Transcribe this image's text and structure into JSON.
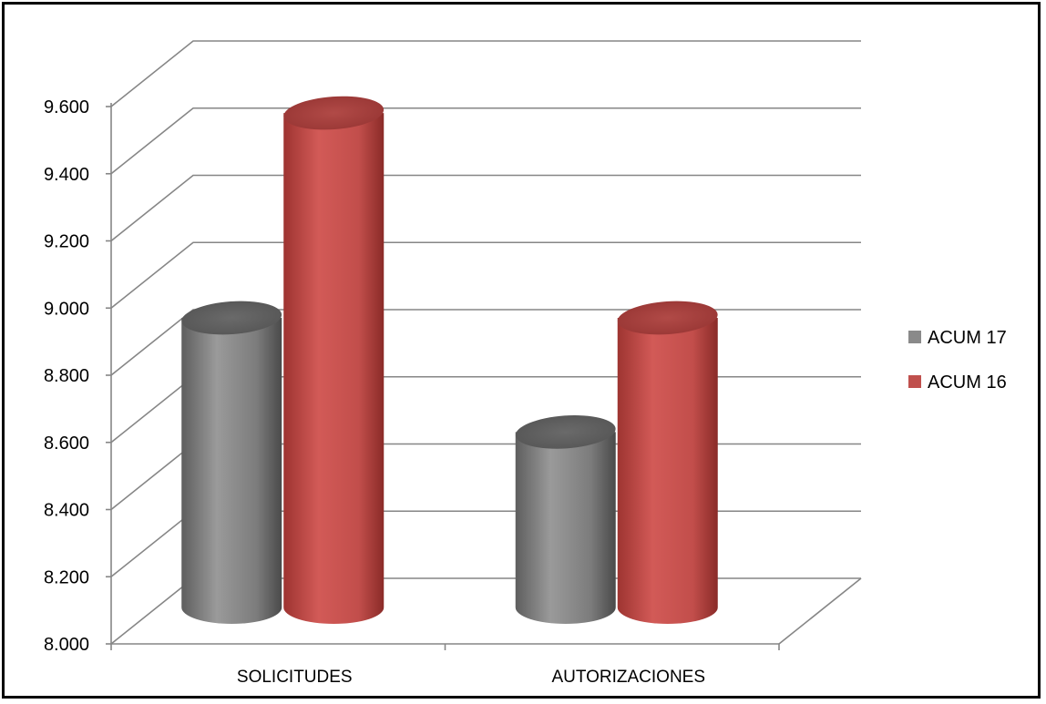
{
  "chart_data": {
    "type": "bar",
    "categories": [
      "SOLICITUDES",
      "AUTORIZACIONES"
    ],
    "series": [
      {
        "name": "ACUM 17",
        "values": [
          8960,
          8620
        ],
        "color": "#8a8a8a"
      },
      {
        "name": "ACUM 16",
        "values": [
          9570,
          8960
        ],
        "color": "#c0504d"
      }
    ],
    "y_ticks": [
      "8.000",
      "8.200",
      "8.400",
      "8.600",
      "8.800",
      "9.000",
      "9.200",
      "9.400",
      "9.600"
    ],
    "ylim": [
      8000,
      9600
    ],
    "grid": true,
    "legend_position": "right",
    "title": "",
    "xlabel": "",
    "ylabel": ""
  }
}
